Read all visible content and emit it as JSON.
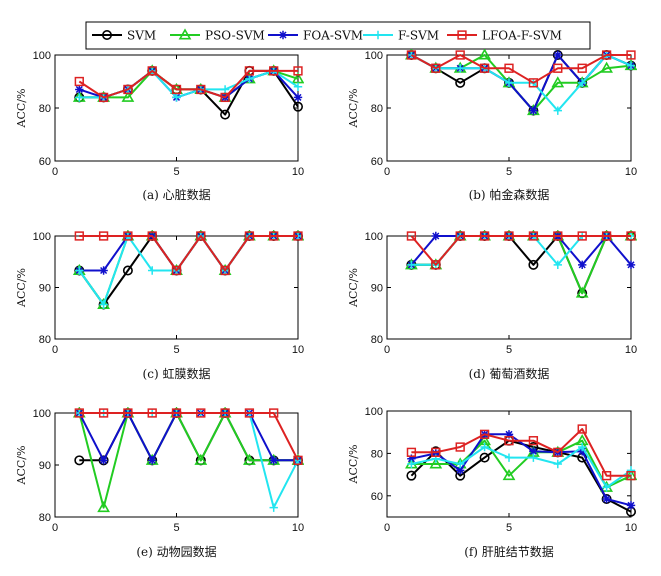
{
  "chart_data": {
    "legend": {
      "placement": "top-center",
      "entries": [
        {
          "name": "SVM",
          "color": "#000000",
          "marker": "circle"
        },
        {
          "name": "PSO-SVM",
          "color": "#22cc22",
          "marker": "triangle"
        },
        {
          "name": "FOA-SVM",
          "color": "#1010cc",
          "marker": "asterisk"
        },
        {
          "name": "F-SVM",
          "color": "#22e5f0",
          "marker": "plus"
        },
        {
          "name": "LFOA-F-SVM",
          "color": "#dd2222",
          "marker": "square"
        }
      ]
    },
    "panels": [
      {
        "type": "line",
        "caption": "(a) 心脏数据",
        "ylabel": "ACC/%",
        "xlim": [
          0,
          10
        ],
        "ylim": [
          60,
          100
        ],
        "xticks": [
          0,
          5,
          10
        ],
        "yticks": [
          60,
          80,
          100
        ],
        "x": [
          1,
          2,
          3,
          4,
          5,
          6,
          7,
          8,
          9,
          10
        ],
        "series": [
          {
            "name": "SVM",
            "values": [
              84,
              84,
              87,
              94,
              87,
              87,
              77.5,
              94,
              94,
              80.5
            ]
          },
          {
            "name": "PSO-SVM",
            "values": [
              84,
              84,
              84,
              94,
              87,
              87,
              84,
              91,
              94,
              91
            ]
          },
          {
            "name": "FOA-SVM",
            "values": [
              87,
              84,
              87,
              94,
              84,
              87,
              84,
              91,
              94,
              84
            ]
          },
          {
            "name": "F-SVM",
            "values": [
              84,
              84,
              87,
              94,
              84,
              87,
              87,
              91,
              94,
              88
            ]
          },
          {
            "name": "LFOA-F-SVM",
            "values": [
              90,
              84,
              87,
              94,
              87,
              87,
              84,
              94,
              94,
              94
            ]
          }
        ]
      },
      {
        "type": "line",
        "caption": "(b) 帕金森数据",
        "ylabel": "ACC/%",
        "xlim": [
          0,
          10
        ],
        "ylim": [
          60,
          100
        ],
        "xticks": [
          0,
          5,
          10
        ],
        "yticks": [
          60,
          80,
          100
        ],
        "x": [
          1,
          2,
          3,
          4,
          5,
          6,
          7,
          8,
          9,
          10
        ],
        "series": [
          {
            "name": "SVM",
            "values": [
              100,
              95,
              89.5,
              95,
              89.5,
              79,
              100,
              89.5,
              100,
              96
            ]
          },
          {
            "name": "PSO-SVM",
            "values": [
              100,
              95,
              95,
              100,
              89.5,
              79,
              89.5,
              89.5,
              95,
              96
            ]
          },
          {
            "name": "FOA-SVM",
            "values": [
              100,
              95,
              95,
              95,
              89.5,
              79,
              100,
              89.5,
              100,
              96
            ]
          },
          {
            "name": "F-SVM",
            "values": [
              100,
              95,
              95,
              95,
              89.5,
              89.5,
              79,
              89.5,
              100,
              96
            ]
          },
          {
            "name": "LFOA-F-SVM",
            "values": [
              100,
              95,
              100,
              95,
              95,
              89.5,
              95,
              95,
              100,
              100
            ]
          }
        ]
      },
      {
        "type": "line",
        "caption": "(c) 虹膜数据",
        "ylabel": "ACC/%",
        "xlim": [
          0,
          10
        ],
        "ylim": [
          80,
          100
        ],
        "xticks": [
          0,
          5,
          10
        ],
        "yticks": [
          80,
          90,
          100
        ],
        "x": [
          1,
          2,
          3,
          4,
          5,
          6,
          7,
          8,
          9,
          10
        ],
        "series": [
          {
            "name": "SVM",
            "values": [
              93.3,
              86.7,
              93.3,
              100,
              93.3,
              100,
              93.3,
              100,
              100,
              100
            ]
          },
          {
            "name": "PSO-SVM",
            "values": [
              93.3,
              86.7,
              100,
              100,
              93.3,
              100,
              93.3,
              100,
              100,
              100
            ]
          },
          {
            "name": "FOA-SVM",
            "values": [
              93.3,
              93.3,
              100,
              100,
              93.3,
              100,
              93.3,
              100,
              100,
              100
            ]
          },
          {
            "name": "F-SVM",
            "values": [
              93.3,
              86.7,
              100,
              93.3,
              93.3,
              100,
              93.3,
              100,
              100,
              100
            ]
          },
          {
            "name": "LFOA-F-SVM",
            "values": [
              100,
              100,
              100,
              100,
              93.3,
              100,
              93.3,
              100,
              100,
              100
            ]
          }
        ]
      },
      {
        "type": "line",
        "caption": "(d) 葡萄酒数据",
        "ylabel": "ACC/%",
        "xlim": [
          0,
          10
        ],
        "ylim": [
          80,
          100
        ],
        "xticks": [
          0,
          5,
          10
        ],
        "yticks": [
          80,
          90,
          100
        ],
        "x": [
          1,
          2,
          3,
          4,
          5,
          6,
          7,
          8,
          9,
          10
        ],
        "series": [
          {
            "name": "SVM",
            "values": [
              94.4,
              94.4,
              100,
              100,
              100,
              94.4,
              100,
              88.9,
              100,
              100
            ]
          },
          {
            "name": "PSO-SVM",
            "values": [
              94.4,
              94.4,
              100,
              100,
              100,
              100,
              100,
              88.9,
              100,
              100
            ]
          },
          {
            "name": "FOA-SVM",
            "values": [
              94.4,
              100,
              100,
              100,
              100,
              100,
              100,
              94.4,
              100,
              94.4
            ]
          },
          {
            "name": "F-SVM",
            "values": [
              94.4,
              94.4,
              100,
              100,
              100,
              100,
              94.4,
              100,
              100,
              100
            ]
          },
          {
            "name": "LFOA-F-SVM",
            "values": [
              100,
              94.4,
              100,
              100,
              100,
              100,
              100,
              100,
              100,
              100
            ]
          }
        ]
      },
      {
        "type": "line",
        "caption": "(e) 动物园数据",
        "ylabel": "ACC/%",
        "xlim": [
          0,
          10
        ],
        "ylim": [
          80,
          100
        ],
        "xticks": [
          0,
          5,
          10
        ],
        "yticks": [
          80,
          90,
          100
        ],
        "x": [
          1,
          2,
          3,
          4,
          5,
          6,
          7,
          8,
          9,
          10
        ],
        "series": [
          {
            "name": "SVM",
            "values": [
              90.9,
              90.9,
              100,
              90.9,
              100,
              90.9,
              100,
              90.9,
              90.9,
              90.9
            ]
          },
          {
            "name": "PSO-SVM",
            "values": [
              100,
              81.8,
              100,
              90.9,
              100,
              90.9,
              100,
              90.9,
              90.9,
              90.9
            ]
          },
          {
            "name": "FOA-SVM",
            "values": [
              100,
              90.9,
              100,
              90.9,
              100,
              100,
              100,
              100,
              90.9,
              90.9
            ]
          },
          {
            "name": "F-SVM",
            "values": [
              100,
              100,
              100,
              100,
              100,
              100,
              100,
              100,
              81.8,
              90.9
            ]
          },
          {
            "name": "LFOA-F-SVM",
            "values": [
              100,
              100,
              100,
              100,
              100,
              100,
              100,
              100,
              100,
              90.9
            ]
          }
        ]
      },
      {
        "type": "line",
        "caption": "(f) 肝脏结节数据",
        "ylabel": "ACC/%",
        "xlim": [
          0,
          10
        ],
        "ylim": [
          50,
          100
        ],
        "xticks": [
          0,
          5,
          10
        ],
        "yticks": [
          60,
          80,
          100
        ],
        "x": [
          1,
          2,
          3,
          4,
          5,
          6,
          7,
          8,
          9,
          10
        ],
        "series": [
          {
            "name": "SVM",
            "values": [
              69.5,
              81,
              69.5,
              78,
              86,
              83,
              80.5,
              78,
              58.5,
              52.5
            ]
          },
          {
            "name": "PSO-SVM",
            "values": [
              75,
              75,
              75,
              86,
              69.5,
              80.5,
              80.5,
              86,
              64,
              69.5
            ]
          },
          {
            "name": "FOA-SVM",
            "values": [
              77.5,
              80,
              72,
              89,
              89,
              81,
              80.5,
              81,
              58.5,
              55.5
            ]
          },
          {
            "name": "F-SVM",
            "values": [
              75,
              77.5,
              75,
              83,
              78,
              78,
              75,
              83,
              64,
              72
            ]
          },
          {
            "name": "LFOA-F-SVM",
            "values": [
              80.5,
              80.5,
              83,
              89,
              86,
              86,
              80.5,
              91.5,
              69.5,
              69.5
            ]
          }
        ]
      }
    ]
  }
}
